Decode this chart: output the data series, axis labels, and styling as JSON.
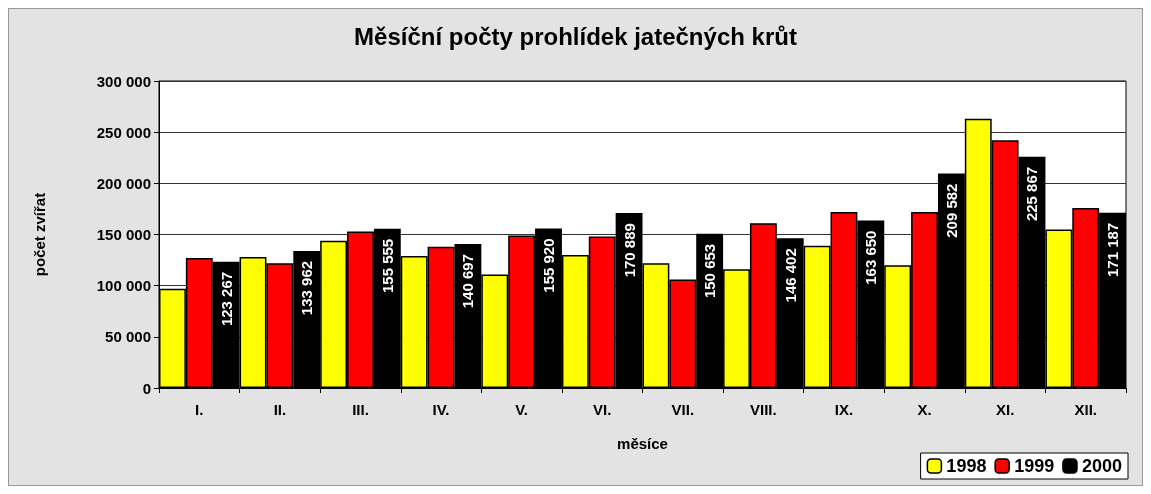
{
  "chart_data": {
    "type": "bar",
    "title": "Měsíční počty prohlídek jatečných krůt",
    "xlabel": "měsíce",
    "ylabel": "počet zvířat",
    "categories": [
      "I.",
      "II.",
      "III.",
      "IV.",
      "V.",
      "VI.",
      "VII.",
      "VIII.",
      "IX.",
      "X.",
      "XI.",
      "XII."
    ],
    "series": [
      {
        "name": "1998",
        "color": "#ffff00",
        "values": [
          97000,
          128000,
          144000,
          129000,
          111000,
          130000,
          122000,
          116000,
          139000,
          120000,
          263000,
          155000
        ]
      },
      {
        "name": "1999",
        "color": "#ff0000",
        "values": [
          127000,
          122000,
          153000,
          138000,
          149000,
          148000,
          106000,
          161000,
          172000,
          172000,
          242000,
          176000
        ]
      },
      {
        "name": "2000",
        "color": "#000000",
        "values": [
          123267,
          133962,
          155555,
          140697,
          155920,
          170889,
          150653,
          146402,
          163650,
          209582,
          225867,
          171187
        ],
        "value_labels": [
          "123 267",
          "133 962",
          "155 555",
          "140 697",
          "155 920",
          "170 889",
          "150 653",
          "146 402",
          "163 650",
          "209 582",
          "225 867",
          "171 187"
        ]
      }
    ],
    "ylim": [
      0,
      300000
    ],
    "yticks": [
      {
        "value": 0,
        "label": "0"
      },
      {
        "value": 50000,
        "label": "50 000"
      },
      {
        "value": 100000,
        "label": "100 000"
      },
      {
        "value": 150000,
        "label": "150 000"
      },
      {
        "value": 200000,
        "label": "200 000"
      },
      {
        "value": 250000,
        "label": "250 000"
      },
      {
        "value": 300000,
        "label": "300 000"
      }
    ],
    "grid": "y",
    "legend": "bottom right"
  }
}
